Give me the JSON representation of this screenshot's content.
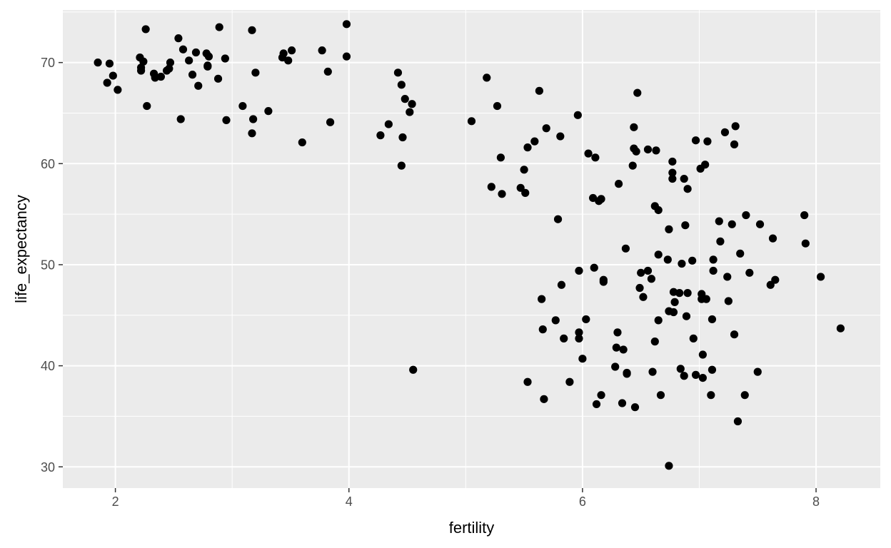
{
  "chart_data": {
    "type": "scatter",
    "title": "",
    "xlabel": "fertility",
    "ylabel": "life_expectancy",
    "xlim": [
      1.55,
      8.55
    ],
    "ylim": [
      27.9,
      75.2
    ],
    "x_ticks": [
      2,
      4,
      6,
      8
    ],
    "x_tick_labels": [
      "2",
      "4",
      "6",
      "8"
    ],
    "y_ticks": [
      30,
      40,
      50,
      60,
      70
    ],
    "y_tick_labels": [
      "30",
      "40",
      "50",
      "60",
      "70"
    ],
    "grid": true,
    "legend": "none",
    "colors": {
      "panel": "#EBEBEB",
      "grid": "#FFFFFF",
      "point": "#000000",
      "tick_text": "#4D4D4D"
    },
    "points": [
      {
        "x": 1.85,
        "y": 70.0
      },
      {
        "x": 1.93,
        "y": 68.0
      },
      {
        "x": 1.95,
        "y": 69.9
      },
      {
        "x": 1.98,
        "y": 68.7
      },
      {
        "x": 2.02,
        "y": 67.3
      },
      {
        "x": 2.21,
        "y": 70.5
      },
      {
        "x": 2.22,
        "y": 69.5
      },
      {
        "x": 2.22,
        "y": 69.2
      },
      {
        "x": 2.24,
        "y": 70.1
      },
      {
        "x": 2.26,
        "y": 73.3
      },
      {
        "x": 2.27,
        "y": 65.7
      },
      {
        "x": 2.33,
        "y": 68.9
      },
      {
        "x": 2.34,
        "y": 68.5
      },
      {
        "x": 2.39,
        "y": 68.6
      },
      {
        "x": 2.44,
        "y": 69.2
      },
      {
        "x": 2.46,
        "y": 69.4
      },
      {
        "x": 2.47,
        "y": 70.0
      },
      {
        "x": 2.54,
        "y": 72.4
      },
      {
        "x": 2.56,
        "y": 64.4
      },
      {
        "x": 2.58,
        "y": 71.3
      },
      {
        "x": 2.63,
        "y": 70.2
      },
      {
        "x": 2.66,
        "y": 68.8
      },
      {
        "x": 2.69,
        "y": 71.0
      },
      {
        "x": 2.71,
        "y": 67.7
      },
      {
        "x": 2.78,
        "y": 70.9
      },
      {
        "x": 2.79,
        "y": 69.6
      },
      {
        "x": 2.79,
        "y": 69.7
      },
      {
        "x": 2.8,
        "y": 70.6
      },
      {
        "x": 2.88,
        "y": 68.4
      },
      {
        "x": 2.89,
        "y": 73.5
      },
      {
        "x": 2.94,
        "y": 70.4
      },
      {
        "x": 2.95,
        "y": 64.3
      },
      {
        "x": 3.09,
        "y": 65.7
      },
      {
        "x": 3.17,
        "y": 73.2
      },
      {
        "x": 3.17,
        "y": 63.0
      },
      {
        "x": 3.18,
        "y": 64.4
      },
      {
        "x": 3.2,
        "y": 69.0
      },
      {
        "x": 3.31,
        "y": 65.2
      },
      {
        "x": 3.43,
        "y": 70.5
      },
      {
        "x": 3.44,
        "y": 70.9
      },
      {
        "x": 3.48,
        "y": 70.2
      },
      {
        "x": 3.51,
        "y": 71.2
      },
      {
        "x": 3.6,
        "y": 62.1
      },
      {
        "x": 3.77,
        "y": 71.2
      },
      {
        "x": 3.82,
        "y": 69.1
      },
      {
        "x": 3.84,
        "y": 64.1
      },
      {
        "x": 3.98,
        "y": 73.8
      },
      {
        "x": 3.98,
        "y": 70.6
      },
      {
        "x": 4.27,
        "y": 62.8
      },
      {
        "x": 4.34,
        "y": 63.9
      },
      {
        "x": 4.42,
        "y": 69.0
      },
      {
        "x": 4.45,
        "y": 67.8
      },
      {
        "x": 4.45,
        "y": 59.8
      },
      {
        "x": 4.46,
        "y": 62.6
      },
      {
        "x": 4.48,
        "y": 66.4
      },
      {
        "x": 4.52,
        "y": 65.1
      },
      {
        "x": 4.54,
        "y": 65.9
      },
      {
        "x": 4.55,
        "y": 39.6
      },
      {
        "x": 5.05,
        "y": 64.2
      },
      {
        "x": 5.18,
        "y": 68.5
      },
      {
        "x": 5.22,
        "y": 57.7
      },
      {
        "x": 5.27,
        "y": 65.7
      },
      {
        "x": 5.3,
        "y": 60.6
      },
      {
        "x": 5.31,
        "y": 57.0
      },
      {
        "x": 5.47,
        "y": 57.6
      },
      {
        "x": 5.5,
        "y": 59.4
      },
      {
        "x": 5.51,
        "y": 57.1
      },
      {
        "x": 5.53,
        "y": 61.6
      },
      {
        "x": 5.53,
        "y": 38.4
      },
      {
        "x": 5.59,
        "y": 62.2
      },
      {
        "x": 5.63,
        "y": 67.2
      },
      {
        "x": 5.65,
        "y": 46.6
      },
      {
        "x": 5.66,
        "y": 43.6
      },
      {
        "x": 5.67,
        "y": 36.7
      },
      {
        "x": 5.69,
        "y": 63.5
      },
      {
        "x": 5.77,
        "y": 44.5
      },
      {
        "x": 5.79,
        "y": 54.5
      },
      {
        "x": 5.81,
        "y": 62.7
      },
      {
        "x": 5.82,
        "y": 48.0
      },
      {
        "x": 5.84,
        "y": 42.7
      },
      {
        "x": 5.89,
        "y": 38.4
      },
      {
        "x": 5.96,
        "y": 64.8
      },
      {
        "x": 5.97,
        "y": 49.4
      },
      {
        "x": 5.97,
        "y": 43.3
      },
      {
        "x": 5.97,
        "y": 42.7
      },
      {
        "x": 6.0,
        "y": 40.7
      },
      {
        "x": 6.03,
        "y": 44.6
      },
      {
        "x": 6.05,
        "y": 61.0
      },
      {
        "x": 6.09,
        "y": 56.6
      },
      {
        "x": 6.1,
        "y": 49.7
      },
      {
        "x": 6.11,
        "y": 60.6
      },
      {
        "x": 6.12,
        "y": 36.2
      },
      {
        "x": 6.14,
        "y": 56.3
      },
      {
        "x": 6.16,
        "y": 56.5
      },
      {
        "x": 6.16,
        "y": 37.1
      },
      {
        "x": 6.18,
        "y": 48.5
      },
      {
        "x": 6.18,
        "y": 48.3
      },
      {
        "x": 6.28,
        "y": 39.9
      },
      {
        "x": 6.29,
        "y": 41.8
      },
      {
        "x": 6.3,
        "y": 43.3
      },
      {
        "x": 6.31,
        "y": 58.0
      },
      {
        "x": 6.34,
        "y": 36.3
      },
      {
        "x": 6.35,
        "y": 41.6
      },
      {
        "x": 6.37,
        "y": 51.6
      },
      {
        "x": 6.38,
        "y": 39.2
      },
      {
        "x": 6.38,
        "y": 39.3
      },
      {
        "x": 6.43,
        "y": 59.8
      },
      {
        "x": 6.44,
        "y": 61.5
      },
      {
        "x": 6.44,
        "y": 63.6
      },
      {
        "x": 6.45,
        "y": 35.9
      },
      {
        "x": 6.46,
        "y": 61.2
      },
      {
        "x": 6.47,
        "y": 67.0
      },
      {
        "x": 6.49,
        "y": 47.7
      },
      {
        "x": 6.5,
        "y": 49.2
      },
      {
        "x": 6.52,
        "y": 46.8
      },
      {
        "x": 6.56,
        "y": 61.4
      },
      {
        "x": 6.56,
        "y": 49.4
      },
      {
        "x": 6.59,
        "y": 48.6
      },
      {
        "x": 6.6,
        "y": 39.4
      },
      {
        "x": 6.62,
        "y": 42.4
      },
      {
        "x": 6.62,
        "y": 55.8
      },
      {
        "x": 6.63,
        "y": 61.3
      },
      {
        "x": 6.65,
        "y": 55.4
      },
      {
        "x": 6.65,
        "y": 44.5
      },
      {
        "x": 6.65,
        "y": 51.0
      },
      {
        "x": 6.67,
        "y": 37.1
      },
      {
        "x": 6.73,
        "y": 50.5
      },
      {
        "x": 6.74,
        "y": 30.1
      },
      {
        "x": 6.74,
        "y": 53.5
      },
      {
        "x": 6.74,
        "y": 45.4
      },
      {
        "x": 6.77,
        "y": 59.1
      },
      {
        "x": 6.77,
        "y": 58.5
      },
      {
        "x": 6.77,
        "y": 60.2
      },
      {
        "x": 6.78,
        "y": 47.3
      },
      {
        "x": 6.78,
        "y": 45.3
      },
      {
        "x": 6.79,
        "y": 46.3
      },
      {
        "x": 6.83,
        "y": 47.2
      },
      {
        "x": 6.84,
        "y": 39.7
      },
      {
        "x": 6.85,
        "y": 50.1
      },
      {
        "x": 6.87,
        "y": 58.5
      },
      {
        "x": 6.87,
        "y": 39.0
      },
      {
        "x": 6.88,
        "y": 53.9
      },
      {
        "x": 6.89,
        "y": 44.9
      },
      {
        "x": 6.9,
        "y": 57.5
      },
      {
        "x": 6.9,
        "y": 47.2
      },
      {
        "x": 6.94,
        "y": 50.4
      },
      {
        "x": 6.95,
        "y": 42.7
      },
      {
        "x": 6.97,
        "y": 62.3
      },
      {
        "x": 6.97,
        "y": 39.1
      },
      {
        "x": 7.01,
        "y": 59.5
      },
      {
        "x": 7.02,
        "y": 47.1
      },
      {
        "x": 7.02,
        "y": 46.6
      },
      {
        "x": 7.03,
        "y": 41.1
      },
      {
        "x": 7.03,
        "y": 38.8
      },
      {
        "x": 7.05,
        "y": 59.9
      },
      {
        "x": 7.06,
        "y": 46.6
      },
      {
        "x": 7.07,
        "y": 62.2
      },
      {
        "x": 7.1,
        "y": 37.1
      },
      {
        "x": 7.11,
        "y": 44.6
      },
      {
        "x": 7.11,
        "y": 39.6
      },
      {
        "x": 7.12,
        "y": 50.5
      },
      {
        "x": 7.12,
        "y": 49.4
      },
      {
        "x": 7.17,
        "y": 54.3
      },
      {
        "x": 7.18,
        "y": 52.3
      },
      {
        "x": 7.22,
        "y": 63.1
      },
      {
        "x": 7.24,
        "y": 48.8
      },
      {
        "x": 7.25,
        "y": 46.4
      },
      {
        "x": 7.28,
        "y": 54.0
      },
      {
        "x": 7.3,
        "y": 61.9
      },
      {
        "x": 7.3,
        "y": 43.1
      },
      {
        "x": 7.31,
        "y": 63.7
      },
      {
        "x": 7.33,
        "y": 34.5
      },
      {
        "x": 7.35,
        "y": 51.1
      },
      {
        "x": 7.39,
        "y": 37.1
      },
      {
        "x": 7.4,
        "y": 54.9
      },
      {
        "x": 7.43,
        "y": 49.2
      },
      {
        "x": 7.5,
        "y": 39.4
      },
      {
        "x": 7.52,
        "y": 54.0
      },
      {
        "x": 7.61,
        "y": 48.0
      },
      {
        "x": 7.63,
        "y": 52.6
      },
      {
        "x": 7.65,
        "y": 48.5
      },
      {
        "x": 7.9,
        "y": 54.9
      },
      {
        "x": 7.91,
        "y": 52.1
      },
      {
        "x": 8.04,
        "y": 48.8
      },
      {
        "x": 8.21,
        "y": 43.7
      }
    ]
  }
}
